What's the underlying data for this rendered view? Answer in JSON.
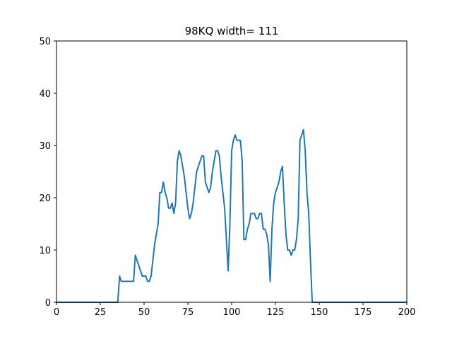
{
  "chart_data": {
    "type": "line",
    "title": "98KQ width= 111",
    "xlabel": "",
    "ylabel": "",
    "xlim": [
      0,
      200
    ],
    "ylim": [
      0,
      50
    ],
    "xticks": [
      0,
      25,
      50,
      75,
      100,
      125,
      150,
      175,
      200
    ],
    "yticks": [
      0,
      10,
      20,
      30,
      40,
      50
    ],
    "grid": false,
    "line_color": "#1f77b4",
    "series": [
      {
        "x": [
          0,
          35,
          36,
          37,
          38,
          39,
          40,
          41,
          42,
          43,
          44,
          45,
          46,
          47,
          48,
          49,
          50,
          51,
          52,
          53,
          54,
          55,
          56,
          57,
          58,
          59,
          60,
          61,
          62,
          63,
          64,
          65,
          66,
          67,
          68,
          69,
          70,
          71,
          72,
          73,
          74,
          75,
          76,
          77,
          78,
          79,
          80,
          81,
          82,
          83,
          84,
          85,
          86,
          87,
          88,
          89,
          90,
          91,
          92,
          93,
          94,
          95,
          96,
          97,
          98,
          99,
          100,
          101,
          102,
          103,
          104,
          105,
          106,
          107,
          108,
          109,
          110,
          111,
          112,
          113,
          114,
          115,
          116,
          117,
          118,
          119,
          120,
          121,
          122,
          123,
          124,
          125,
          126,
          127,
          128,
          129,
          130,
          131,
          132,
          133,
          134,
          135,
          136,
          137,
          138,
          139,
          140,
          141,
          142,
          143,
          144,
          145,
          146,
          147,
          200
        ],
        "y": [
          0,
          0,
          5,
          4,
          4,
          4,
          4,
          4,
          4,
          4,
          4,
          9,
          8,
          7,
          6,
          5,
          5,
          5,
          4,
          4,
          5,
          8,
          11,
          13,
          15,
          21,
          21,
          23,
          21,
          20,
          18,
          18,
          19,
          17,
          19,
          27,
          29,
          28,
          26,
          24,
          21,
          18,
          16,
          17,
          19,
          22,
          25,
          26,
          27,
          28,
          28,
          23,
          22,
          21,
          22,
          25,
          27,
          29,
          29,
          28,
          24,
          21,
          18,
          12,
          6,
          15,
          29,
          31,
          32,
          31,
          31,
          31,
          27,
          12,
          12,
          14,
          15,
          17,
          17,
          17,
          16,
          16,
          17,
          17,
          14,
          14,
          13,
          11,
          4,
          14,
          19,
          21,
          22,
          23,
          25,
          26,
          19,
          13,
          10,
          10,
          9,
          10,
          10,
          12,
          16,
          31,
          32,
          33,
          29,
          21,
          17,
          8,
          0,
          0,
          0
        ]
      }
    ]
  }
}
